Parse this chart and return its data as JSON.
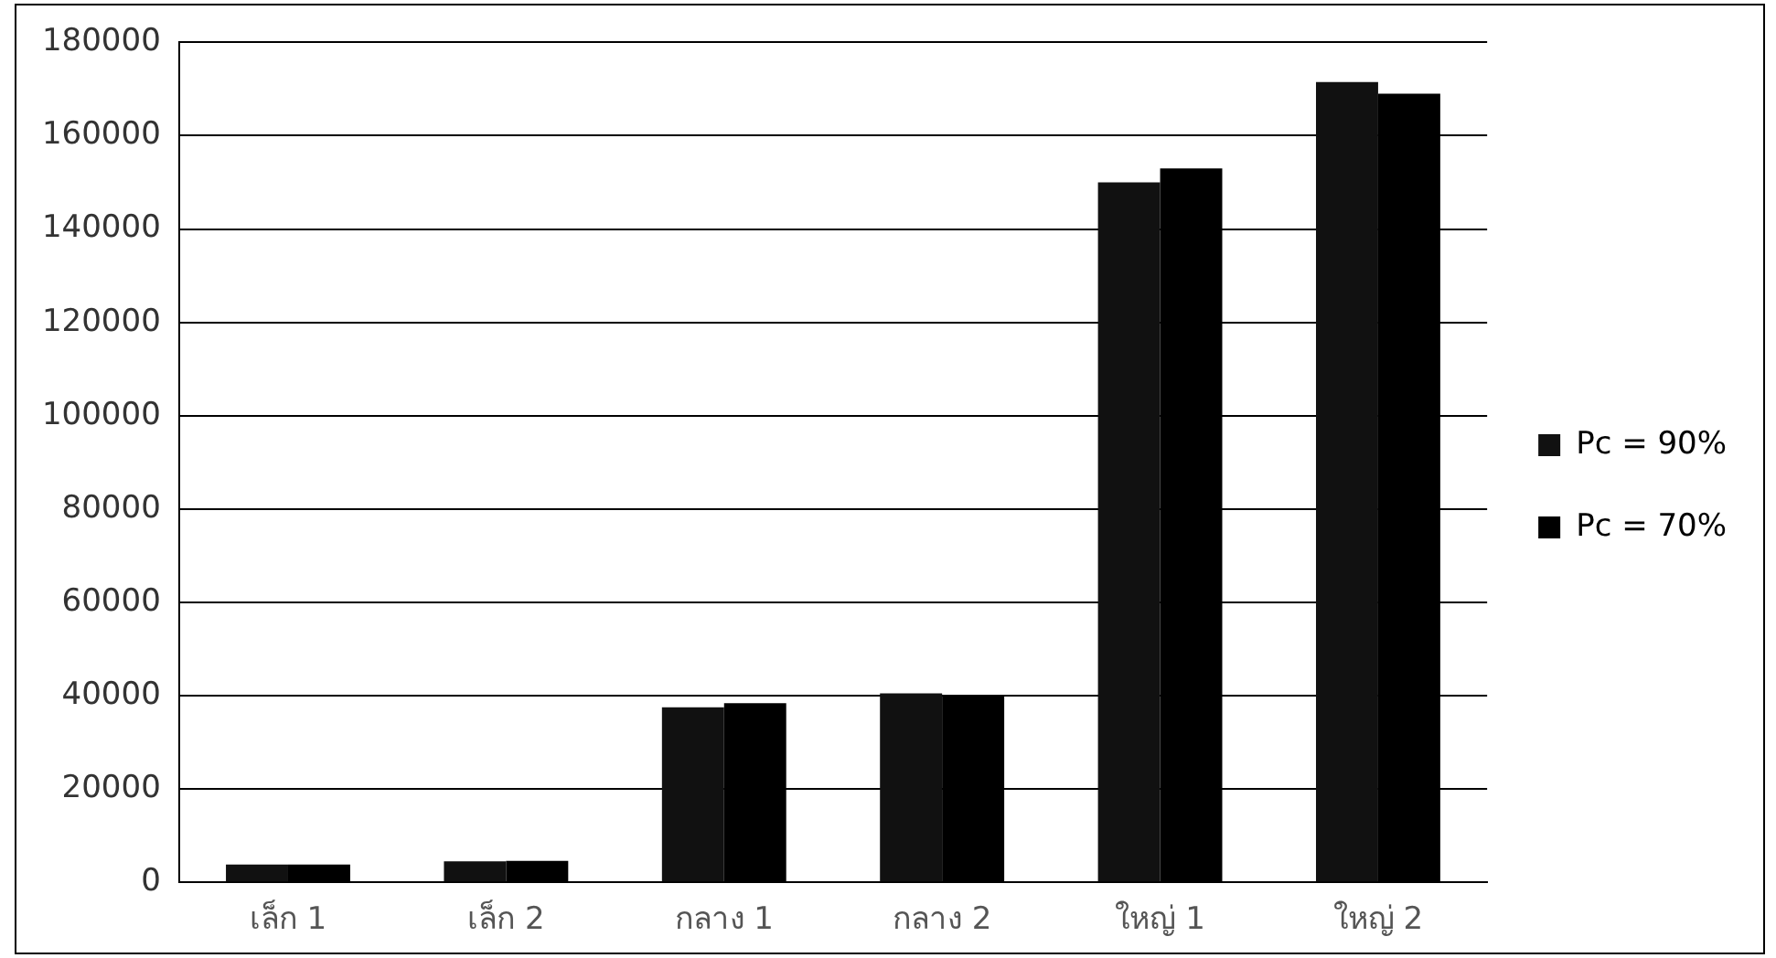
{
  "chart_data": {
    "type": "bar",
    "categories": [
      "เล็ก 1",
      "เล็ก 2",
      "กลาง 1",
      "กลาง 2",
      "ใหญ่ 1",
      "ใหญ่ 2"
    ],
    "series": [
      {
        "name": "Pc = 90%",
        "color": "#111111",
        "values": [
          3800,
          4500,
          37500,
          40500,
          150000,
          171500
        ]
      },
      {
        "name": "Pc = 70%",
        "color": "#000000",
        "values": [
          3800,
          4600,
          38400,
          40000,
          153000,
          169000
        ]
      }
    ],
    "ylim": [
      0,
      180000
    ],
    "yticks": [
      0,
      20000,
      40000,
      60000,
      80000,
      100000,
      120000,
      140000,
      160000,
      180000
    ],
    "grid": "y",
    "legend": "right"
  }
}
